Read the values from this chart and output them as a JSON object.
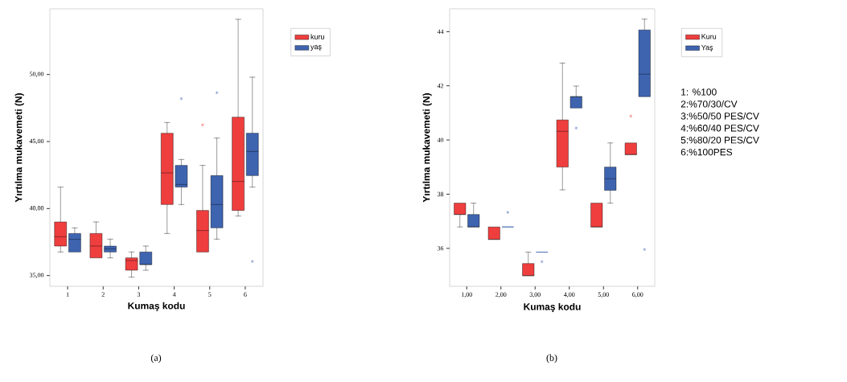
{
  "chart_data": [
    {
      "type": "box",
      "xlabel": "Kumaş kodu",
      "ylabel": "Yırtılma mukavemeti (N)",
      "categories": [
        "1",
        "2",
        "3",
        "4",
        "5",
        "6"
      ],
      "ylim": [
        34.2,
        54.9
      ],
      "yticks": [
        {
          "value": 35,
          "label": "35,00"
        },
        {
          "value": 40,
          "label": "40,00"
        },
        {
          "value": 45,
          "label": "45,00"
        },
        {
          "value": 50,
          "label": "50,00"
        }
      ],
      "legend": "right",
      "marker": "star",
      "annotations": [
        "(a)"
      ],
      "series": [
        {
          "name": "kuru",
          "color": "#ef3e3e",
          "boxes": [
            {
              "low": 36.76,
              "q1": 37.2,
              "median": 37.9,
              "q3": 39.0,
              "high": 41.6
            },
            {
              "low": 36.32,
              "q1": 36.32,
              "median": 37.2,
              "q3": 38.14,
              "high": 39.0
            },
            {
              "low": 34.88,
              "q1": 35.4,
              "median": 36.12,
              "q3": 36.32,
              "high": 36.76
            },
            {
              "low": 38.14,
              "q1": 40.3,
              "median": 42.66,
              "q3": 45.62,
              "high": 46.42
            },
            {
              "low": 36.76,
              "q1": 36.76,
              "median": 38.36,
              "q3": 39.86,
              "high": 43.22,
              "outliers": [
                46.24
              ]
            },
            {
              "low": 39.44,
              "q1": 39.86,
              "median": 42.02,
              "q3": 46.82,
              "high": 54.12
            }
          ]
        },
        {
          "name": "yaş",
          "color": "#3e64b0",
          "boxes": [
            {
              "low": 36.76,
              "q1": 36.76,
              "median": 37.7,
              "q3": 38.14,
              "high": 38.56
            },
            {
              "low": 36.32,
              "q1": 36.76,
              "median": 37.0,
              "q3": 37.2,
              "high": 37.72
            },
            {
              "low": 35.4,
              "q1": 35.82,
              "median": 35.82,
              "q3": 36.76,
              "high": 37.2
            },
            {
              "low": 40.3,
              "q1": 41.6,
              "median": 41.8,
              "q3": 43.22,
              "high": 43.66,
              "outliers": [
                48.2
              ]
            },
            {
              "low": 37.72,
              "q1": 38.56,
              "median": 40.3,
              "q3": 42.46,
              "high": 45.26,
              "outliers": [
                48.64
              ]
            },
            {
              "low": 41.6,
              "q1": 42.46,
              "median": 44.26,
              "q3": 45.62,
              "high": 49.8,
              "outliers": [
                36.06
              ]
            }
          ]
        }
      ]
    },
    {
      "type": "box",
      "xlabel": "Kumaş kodu",
      "ylabel": "Yırtılma mukavemeti (N)",
      "categories": [
        "1,00",
        "2,00",
        "3,00",
        "4,00",
        "5,00",
        "6,00"
      ],
      "ylim": [
        34.6,
        44.84
      ],
      "yticks": [
        36,
        38,
        40,
        42,
        44
      ],
      "legend": "right",
      "marker": "star",
      "annotations": [
        "1: %100",
        "2:%70/30/CV",
        "3:%50/50 PES/CV",
        "4:%60/40 PES/CV",
        "5:%80/20 PES/CV",
        "6:%100PES",
        "(b)"
      ],
      "series": [
        {
          "name": "Kuru",
          "color": "#ef3e3e",
          "boxes": [
            {
              "low": 36.79,
              "q1": 37.25,
              "median": 37.25,
              "q3": 37.67,
              "high": 37.67
            },
            {
              "low": 36.33,
              "q1": 36.33,
              "median": 36.33,
              "q3": 36.79,
              "high": 36.79
            },
            {
              "low": 34.99,
              "q1": 34.99,
              "median": 34.99,
              "q3": 35.44,
              "high": 35.86
            },
            {
              "low": 38.16,
              "q1": 39.0,
              "median": 40.32,
              "q3": 40.74,
              "high": 42.84
            },
            {
              "low": 36.79,
              "q1": 36.79,
              "median": 36.79,
              "q3": 37.67,
              "high": 37.67
            },
            {
              "low": 39.46,
              "q1": 39.46,
              "median": 39.46,
              "q3": 39.89,
              "high": 39.89,
              "outliers": [
                40.88
              ]
            }
          ]
        },
        {
          "name": "Yaş",
          "color": "#3e64b0",
          "boxes": [
            {
              "low": 36.79,
              "q1": 36.79,
              "median": 36.79,
              "q3": 37.25,
              "high": 37.67
            },
            {
              "low": 36.79,
              "q1": 36.79,
              "median": 36.79,
              "q3": 36.79,
              "high": 36.79,
              "outliers": [
                37.33
              ]
            },
            {
              "low": 35.86,
              "q1": 35.86,
              "median": 35.86,
              "q3": 35.86,
              "high": 35.86,
              "outliers": [
                35.51
              ]
            },
            {
              "low": 41.18,
              "q1": 41.18,
              "median": 41.6,
              "q3": 41.6,
              "high": 41.99,
              "outliers": [
                40.44
              ]
            },
            {
              "low": 37.67,
              "q1": 38.14,
              "median": 38.57,
              "q3": 39.0,
              "high": 39.89
            },
            {
              "low": 41.6,
              "q1": 41.6,
              "median": 42.43,
              "q3": 44.06,
              "high": 44.46,
              "outliers": [
                35.96
              ]
            }
          ]
        }
      ]
    }
  ]
}
